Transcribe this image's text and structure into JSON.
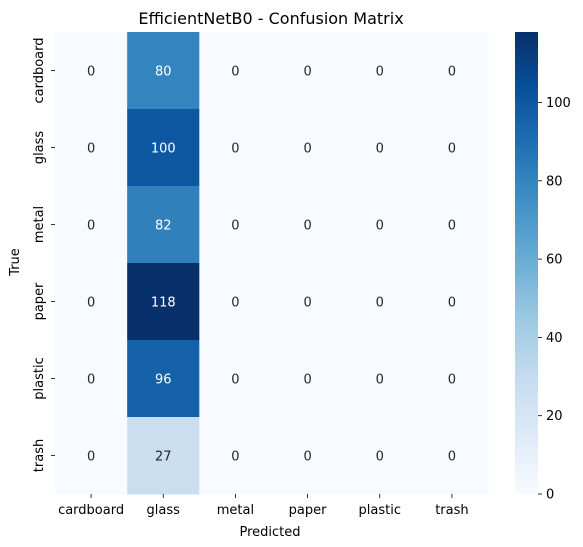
{
  "chart_data": {
    "type": "heatmap",
    "title": "EfficientNetB0 - Confusion Matrix",
    "xlabel": "Predicted",
    "ylabel": "True",
    "x_categories": [
      "cardboard",
      "glass",
      "metal",
      "paper",
      "plastic",
      "trash"
    ],
    "y_categories": [
      "cardboard",
      "glass",
      "metal",
      "paper",
      "plastic",
      "trash"
    ],
    "values": [
      [
        0,
        80,
        0,
        0,
        0,
        0
      ],
      [
        0,
        100,
        0,
        0,
        0,
        0
      ],
      [
        0,
        82,
        0,
        0,
        0,
        0
      ],
      [
        0,
        118,
        0,
        0,
        0,
        0
      ],
      [
        0,
        96,
        0,
        0,
        0,
        0
      ],
      [
        0,
        27,
        0,
        0,
        0,
        0
      ]
    ],
    "colorscale": "Blues",
    "vmin": 0,
    "vmax": 118,
    "colorbar_ticks": [
      0,
      20,
      40,
      60,
      80,
      100
    ]
  }
}
